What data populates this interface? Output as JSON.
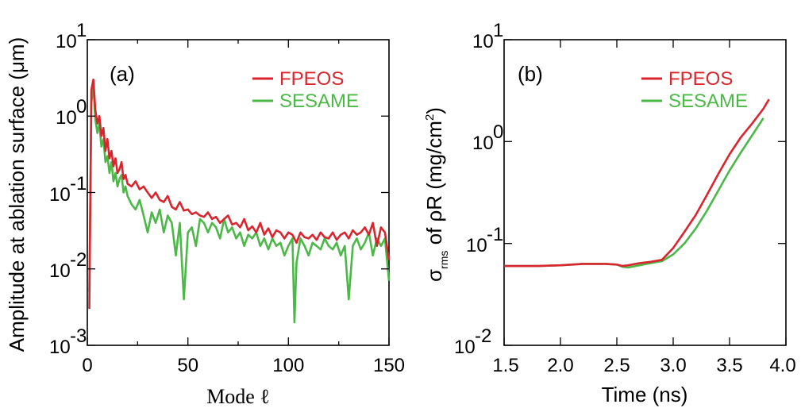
{
  "colors": {
    "fpeos": "#d9262e",
    "sesame": "#4cb848"
  },
  "chart_data": [
    {
      "type": "line",
      "panel": "(a)",
      "xlabel": "Mode ℓ",
      "ylabel": "Amplitude at ablation surface (μm)",
      "xlim": [
        0,
        150
      ],
      "ylim_log10": [
        -3,
        1
      ],
      "yscale": "log",
      "xticks": [
        "0",
        "50",
        "100",
        "150"
      ],
      "yticks": [
        {
          "base": "10",
          "exp": "1"
        },
        {
          "base": "10",
          "exp": "0"
        },
        {
          "base": "10",
          "exp": "-1"
        },
        {
          "base": "10",
          "exp": "-2"
        },
        {
          "base": "10",
          "exp": "-3"
        }
      ],
      "legend": [
        "FPEOS",
        "SESAME"
      ],
      "series": [
        {
          "name": "FPEOS",
          "x": [
            1,
            2,
            3,
            4,
            5,
            6,
            7,
            8,
            9,
            10,
            11,
            12,
            13,
            14,
            15,
            16,
            17,
            18,
            19,
            20,
            22,
            24,
            26,
            28,
            30,
            32,
            34,
            36,
            38,
            40,
            42,
            44,
            46,
            48,
            50,
            52,
            54,
            56,
            58,
            60,
            62,
            64,
            66,
            68,
            70,
            72,
            74,
            76,
            78,
            80,
            82,
            84,
            86,
            88,
            90,
            92,
            94,
            96,
            98,
            100,
            102,
            104,
            106,
            108,
            110,
            112,
            114,
            116,
            118,
            120,
            122,
            124,
            126,
            128,
            130,
            132,
            134,
            136,
            138,
            140,
            142,
            144,
            146,
            148,
            150
          ],
          "y": [
            0.003,
            2.2,
            3.0,
            1.2,
            0.8,
            1.0,
            0.55,
            0.7,
            0.35,
            0.5,
            0.28,
            0.35,
            0.22,
            0.28,
            0.18,
            0.2,
            0.25,
            0.15,
            0.17,
            0.13,
            0.12,
            0.14,
            0.11,
            0.12,
            0.1,
            0.085,
            0.1,
            0.08,
            0.075,
            0.09,
            0.065,
            0.06,
            0.075,
            0.058,
            0.06,
            0.052,
            0.055,
            0.05,
            0.048,
            0.055,
            0.045,
            0.048,
            0.04,
            0.045,
            0.05,
            0.038,
            0.04,
            0.035,
            0.045,
            0.032,
            0.036,
            0.03,
            0.04,
            0.028,
            0.034,
            0.026,
            0.032,
            0.03,
            0.025,
            0.03,
            0.028,
            0.022,
            0.03,
            0.026,
            0.025,
            0.028,
            0.024,
            0.03,
            0.026,
            0.025,
            0.03,
            0.024,
            0.028,
            0.03,
            0.025,
            0.032,
            0.028,
            0.03,
            0.035,
            0.028,
            0.04,
            0.02,
            0.035,
            0.03,
            0.013
          ]
        },
        {
          "name": "SESAME",
          "x": [
            1,
            2,
            3,
            4,
            5,
            6,
            7,
            8,
            9,
            10,
            11,
            12,
            13,
            14,
            15,
            16,
            17,
            18,
            19,
            20,
            22,
            24,
            26,
            28,
            30,
            32,
            34,
            36,
            38,
            40,
            42,
            44,
            46,
            48,
            50,
            52,
            54,
            56,
            58,
            60,
            62,
            64,
            66,
            68,
            70,
            72,
            74,
            76,
            78,
            80,
            82,
            84,
            86,
            88,
            90,
            92,
            94,
            96,
            98,
            100,
            102,
            103,
            104,
            106,
            108,
            110,
            112,
            114,
            116,
            118,
            120,
            122,
            124,
            126,
            128,
            130,
            132,
            134,
            136,
            138,
            140,
            142,
            144,
            146,
            148,
            150
          ],
          "y": [
            0.005,
            1.5,
            2.5,
            0.9,
            0.6,
            0.8,
            0.4,
            0.5,
            0.25,
            0.3,
            0.18,
            0.25,
            0.14,
            0.18,
            0.12,
            0.15,
            0.17,
            0.1,
            0.12,
            0.09,
            0.07,
            0.06,
            0.08,
            0.05,
            0.03,
            0.055,
            0.04,
            0.06,
            0.03,
            0.05,
            0.04,
            0.015,
            0.04,
            0.004,
            0.03,
            0.035,
            0.02,
            0.045,
            0.04,
            0.03,
            0.04,
            0.035,
            0.025,
            0.045,
            0.03,
            0.035,
            0.025,
            0.03,
            0.02,
            0.028,
            0.025,
            0.03,
            0.02,
            0.025,
            0.018,
            0.025,
            0.02,
            0.022,
            0.015,
            0.02,
            0.025,
            0.002,
            0.012,
            0.025,
            0.02,
            0.015,
            0.022,
            0.02,
            0.018,
            0.025,
            0.02,
            0.018,
            0.022,
            0.015,
            0.02,
            0.004,
            0.02,
            0.025,
            0.018,
            0.022,
            0.03,
            0.015,
            0.025,
            0.02,
            0.025,
            0.007
          ]
        }
      ]
    },
    {
      "type": "line",
      "panel": "(b)",
      "xlabel": "Time (ns)",
      "ylabel_main": "σ",
      "ylabel_sub": "rms",
      "ylabel_rest": " of ρR (mg/cm",
      "ylabel_sup": "2",
      "ylabel_end": ")",
      "xlim": [
        1.5,
        4.0
      ],
      "ylim_log10": [
        -2,
        1
      ],
      "yscale": "log",
      "xticks": [
        "1.5",
        "2.0",
        "2.5",
        "3.0",
        "3.5",
        "4.0"
      ],
      "yticks": [
        {
          "base": "10",
          "exp": "1"
        },
        {
          "base": "10",
          "exp": "0"
        },
        {
          "base": "10",
          "exp": "-1"
        },
        {
          "base": "10",
          "exp": "-2"
        }
      ],
      "legend": [
        "FPEOS",
        "SESAME"
      ],
      "series": [
        {
          "name": "FPEOS",
          "x": [
            1.5,
            1.8,
            2.0,
            2.2,
            2.4,
            2.5,
            2.55,
            2.6,
            2.7,
            2.8,
            2.9,
            3.0,
            3.1,
            3.2,
            3.3,
            3.4,
            3.5,
            3.6,
            3.7,
            3.8,
            3.85
          ],
          "y": [
            0.06,
            0.06,
            0.061,
            0.063,
            0.063,
            0.062,
            0.06,
            0.061,
            0.064,
            0.066,
            0.069,
            0.09,
            0.13,
            0.19,
            0.3,
            0.48,
            0.75,
            1.1,
            1.5,
            2.1,
            2.6
          ]
        },
        {
          "name": "SESAME",
          "x": [
            1.5,
            1.8,
            2.0,
            2.2,
            2.4,
            2.5,
            2.55,
            2.6,
            2.7,
            2.8,
            2.9,
            3.0,
            3.1,
            3.2,
            3.3,
            3.4,
            3.5,
            3.6,
            3.7,
            3.8
          ],
          "y": [
            0.06,
            0.06,
            0.061,
            0.063,
            0.063,
            0.062,
            0.059,
            0.058,
            0.061,
            0.064,
            0.067,
            0.078,
            0.1,
            0.14,
            0.21,
            0.33,
            0.52,
            0.78,
            1.15,
            1.7
          ]
        }
      ]
    }
  ]
}
